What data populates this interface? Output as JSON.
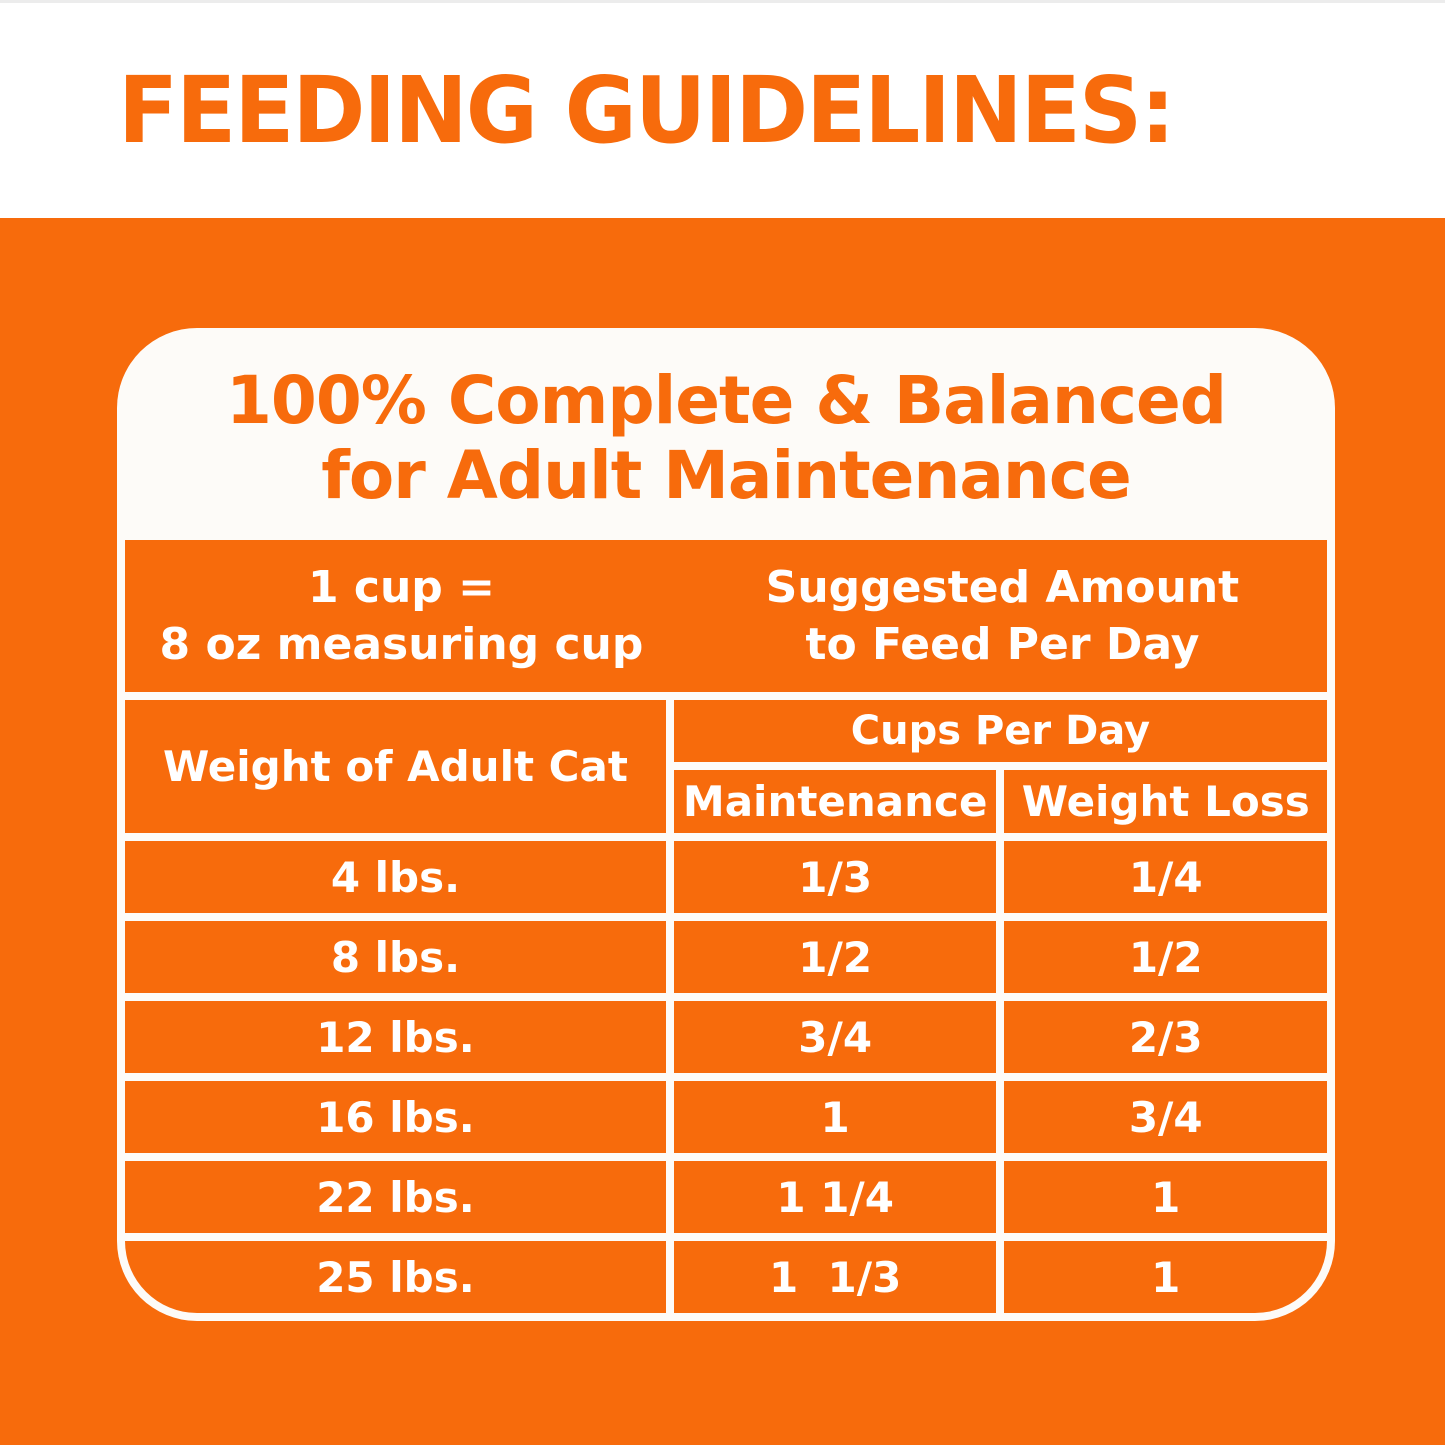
{
  "colors": {
    "accent_orange": "#F76B0C",
    "panel_white": "#FDFBF8",
    "table_text_white": "#FFFFFF"
  },
  "header": {
    "title": "FEEDING GUIDELINES:"
  },
  "panel": {
    "heading_line1": "100% Complete & Balanced",
    "heading_line2": "for Adult Maintenance"
  },
  "table": {
    "cup_note_line1": "1 cup =",
    "cup_note_line2": "8 oz measuring cup",
    "suggested_line1": "Suggested Amount",
    "suggested_line2": "to Feed Per Day",
    "col_weight": "Weight of Adult Cat",
    "col_group": "Cups Per Day",
    "col_maintenance": "Maintenance",
    "col_weight_loss": "Weight Loss",
    "rows": [
      {
        "weight": "4 lbs.",
        "maintenance": "1/3",
        "weight_loss": "1/4"
      },
      {
        "weight": "8 lbs.",
        "maintenance": "1/2",
        "weight_loss": "1/2"
      },
      {
        "weight": "12 lbs.",
        "maintenance": "3/4",
        "weight_loss": "2/3"
      },
      {
        "weight": "16 lbs.",
        "maintenance": "1",
        "weight_loss": "3/4"
      },
      {
        "weight": "22 lbs.",
        "maintenance": "1 1/4",
        "weight_loss": "1"
      },
      {
        "weight": "25 lbs.",
        "maintenance": "1  1/3",
        "weight_loss": "1"
      }
    ]
  }
}
